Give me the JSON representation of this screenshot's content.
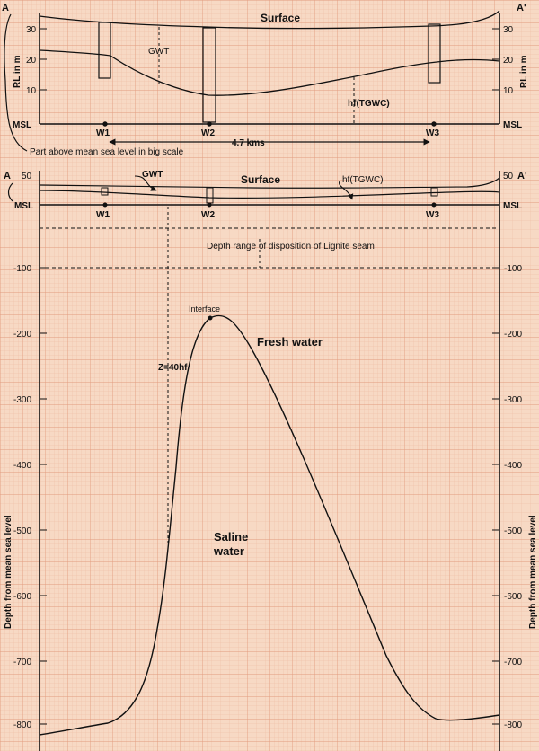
{
  "colors": {
    "paper": "#f7d9c4",
    "grid_minor": "#ecb79c",
    "grid_major": "#e09a7c",
    "ink": "#111111"
  },
  "top_panel": {
    "corner_left": "A",
    "corner_right": "A'",
    "surface_label": "Surface",
    "gwt_label": "GWT",
    "hf_label": "hf(TGWC)",
    "axis_label_left": "RL in m",
    "axis_label_right": "RL in m",
    "y_ticks": [
      "30",
      "20",
      "10"
    ],
    "msl_label": "MSL",
    "wells": [
      "W1",
      "W2",
      "W3"
    ],
    "distance_label": "4.7 kms",
    "note": "Part above mean sea level in big scale"
  },
  "main_panel": {
    "corner_left": "A",
    "corner_right": "A'",
    "top_tick": "50",
    "surface_label": "Surface",
    "gwt_label": "GWT",
    "hf_label": "hf(TGWC)",
    "msl_label": "MSL",
    "wells": [
      "W1",
      "W2",
      "W3"
    ],
    "lignite_label": "Depth range of disposition of Lignite seam",
    "fresh_label": "Fresh water",
    "z_label": "Z=40hf",
    "interface_label": "Interface",
    "saline_label_line1": "Saline",
    "saline_label_line2": "water",
    "depth_ticks": [
      "-100",
      "-200",
      "-300",
      "-400",
      "-500",
      "-600",
      "-700",
      "-800"
    ],
    "axis_label_left": "Depth from mean sea level",
    "axis_label_right": "Depth from mean sea level"
  }
}
